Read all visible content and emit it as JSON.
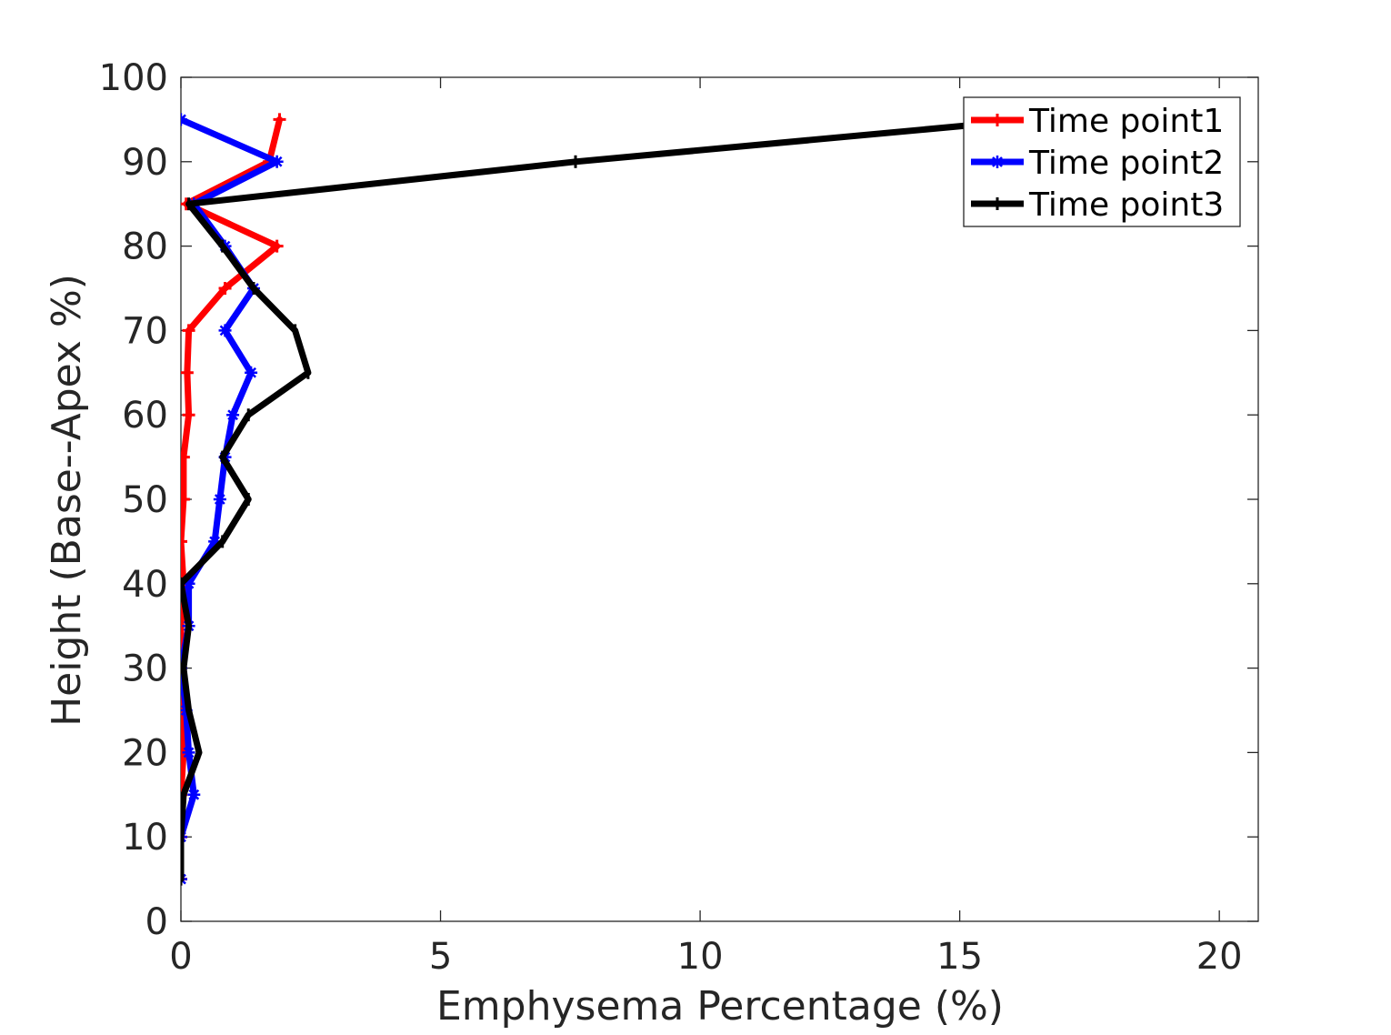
{
  "chart_data": {
    "type": "line",
    "title": "",
    "xlabel": "Emphysema Percentage (%)",
    "ylabel": "Height (Base--Apex %)",
    "xlim": [
      0,
      20.75
    ],
    "ylim": [
      0,
      100
    ],
    "xticks": [
      0,
      5,
      10,
      15,
      20
    ],
    "yticks": [
      0,
      10,
      20,
      30,
      40,
      50,
      60,
      70,
      80,
      90,
      100
    ],
    "grid": false,
    "legend_position": "top-right",
    "series": [
      {
        "name": "Time point1",
        "color": "#ff0000",
        "marker": "plus",
        "points": [
          [
            0.0,
            5
          ],
          [
            0.0,
            10
          ],
          [
            0.0,
            15
          ],
          [
            0.05,
            20
          ],
          [
            0.0,
            25
          ],
          [
            0.0,
            30
          ],
          [
            0.0,
            35
          ],
          [
            0.05,
            40
          ],
          [
            0.0,
            45
          ],
          [
            0.05,
            50
          ],
          [
            0.05,
            55
          ],
          [
            0.15,
            60
          ],
          [
            0.12,
            65
          ],
          [
            0.15,
            70
          ],
          [
            0.85,
            75
          ],
          [
            1.85,
            80
          ],
          [
            0.1,
            85
          ],
          [
            1.7,
            90
          ],
          [
            1.9,
            95
          ]
        ]
      },
      {
        "name": "Time point2",
        "color": "#0000ff",
        "marker": "star",
        "points": [
          [
            0.0,
            5
          ],
          [
            0.0,
            10
          ],
          [
            0.25,
            15
          ],
          [
            0.15,
            20
          ],
          [
            0.1,
            25
          ],
          [
            0.0,
            30
          ],
          [
            0.15,
            35
          ],
          [
            0.15,
            40
          ],
          [
            0.65,
            45
          ],
          [
            0.75,
            50
          ],
          [
            0.85,
            55
          ],
          [
            1.0,
            60
          ],
          [
            1.35,
            65
          ],
          [
            0.85,
            70
          ],
          [
            1.4,
            75
          ],
          [
            0.85,
            80
          ],
          [
            0.25,
            85
          ],
          [
            1.85,
            90
          ],
          [
            0.0,
            95
          ]
        ]
      },
      {
        "name": "Time point3",
        "color": "#000000",
        "marker": "tick",
        "points": [
          [
            0.0,
            5
          ],
          [
            0.0,
            10
          ],
          [
            0.05,
            15
          ],
          [
            0.35,
            20
          ],
          [
            0.15,
            25
          ],
          [
            0.05,
            30
          ],
          [
            0.15,
            35
          ],
          [
            0.0,
            40
          ],
          [
            0.8,
            45
          ],
          [
            1.3,
            50
          ],
          [
            0.8,
            55
          ],
          [
            1.3,
            60
          ],
          [
            2.45,
            65
          ],
          [
            2.2,
            70
          ],
          [
            1.4,
            75
          ],
          [
            0.8,
            80
          ],
          [
            0.15,
            85
          ],
          [
            7.6,
            90
          ],
          [
            16.4,
            95
          ]
        ]
      }
    ]
  }
}
